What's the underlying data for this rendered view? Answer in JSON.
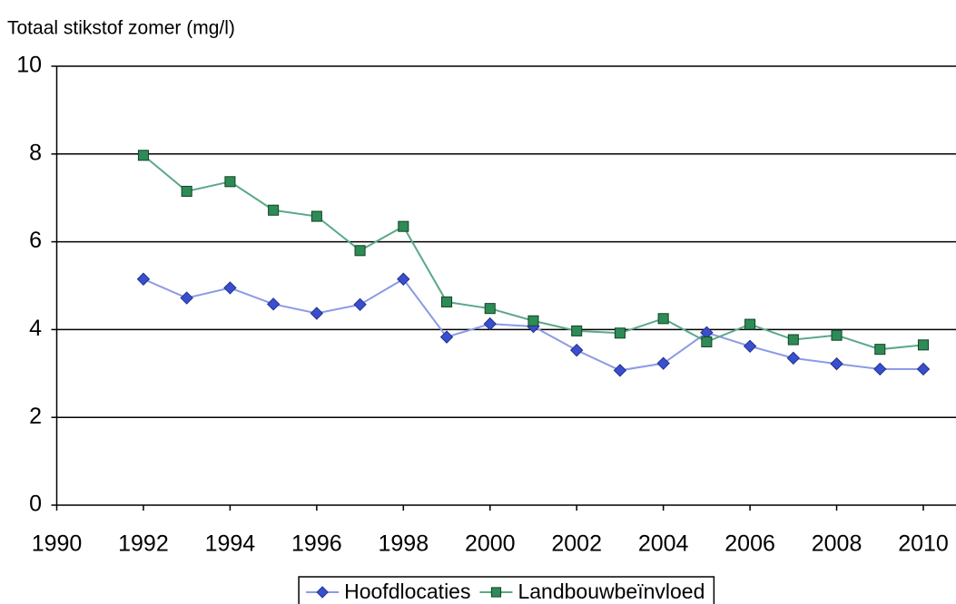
{
  "chart_data": {
    "type": "line",
    "title": "Totaal stikstof zomer (mg/l)",
    "x": [
      1992,
      1993,
      1994,
      1995,
      1996,
      1997,
      1998,
      1999,
      2000,
      2001,
      2002,
      2003,
      2004,
      2005,
      2006,
      2007,
      2008,
      2009,
      2010
    ],
    "series": [
      {
        "name": "Hoofdlocaties",
        "color": "#3a4fcf",
        "line_color": "#8c9ae6",
        "marker": "diamond",
        "values": [
          5.15,
          4.72,
          4.95,
          4.58,
          4.37,
          4.57,
          5.15,
          3.83,
          4.13,
          4.07,
          3.53,
          3.07,
          3.23,
          3.93,
          3.62,
          3.35,
          3.22,
          3.1,
          3.1
        ]
      },
      {
        "name": "Landbouwbeïnvloed",
        "color": "#2e8b57",
        "line_color": "#5aa888",
        "marker": "square",
        "values": [
          7.97,
          7.15,
          7.37,
          6.72,
          6.58,
          5.8,
          6.35,
          4.63,
          4.48,
          4.2,
          3.97,
          3.92,
          4.25,
          3.72,
          4.12,
          3.77,
          3.87,
          3.55,
          3.65
        ]
      }
    ],
    "xlim": [
      1990,
      2010
    ],
    "xticks": [
      1990,
      1992,
      1994,
      1996,
      1998,
      2000,
      2002,
      2004,
      2006,
      2008,
      2010
    ],
    "ylim": [
      0,
      10
    ],
    "yticks": [
      0,
      2,
      4,
      6,
      8,
      10
    ],
    "grid": true,
    "legend": "bottom"
  }
}
